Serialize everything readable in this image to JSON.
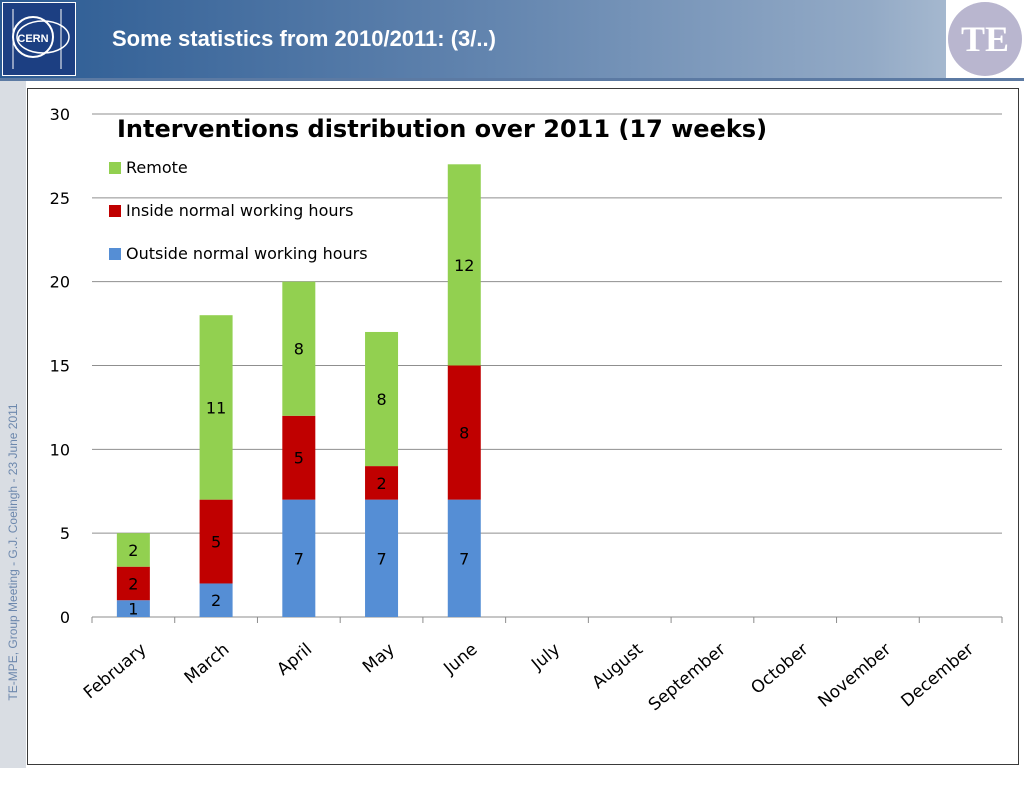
{
  "slide": {
    "title": "Some statistics from 2010/2011: (3/..)",
    "side_text": "TE-MPE, Group Meeting - G.J. Coelingh -  23 June 2011",
    "cern_logo_text": "CERN",
    "te_logo_text": "TE"
  },
  "colors": {
    "remote": "#92d050",
    "inside": "#c00000",
    "outside": "#558ed5",
    "header_dark": "#2b5b93"
  },
  "chart_data": {
    "type": "bar",
    "stacked": true,
    "title": "Interventions distribution over 2011 (17 weeks)",
    "xlabel": "",
    "ylabel": "",
    "ylim": [
      0,
      30
    ],
    "yticks": [
      0,
      5,
      10,
      15,
      20,
      25,
      30
    ],
    "grid": true,
    "legend_position": "top-left",
    "categories": [
      "February",
      "March",
      "April",
      "May",
      "June",
      "July",
      "August",
      "September",
      "October",
      "November",
      "December"
    ],
    "series": [
      {
        "name": "Outside normal working hours",
        "color": "#558ed5",
        "values": [
          1,
          2,
          7,
          7,
          7,
          null,
          null,
          null,
          null,
          null,
          null
        ]
      },
      {
        "name": "Inside normal working hours",
        "color": "#c00000",
        "values": [
          2,
          5,
          5,
          2,
          8,
          null,
          null,
          null,
          null,
          null,
          null
        ]
      },
      {
        "name": "Remote",
        "color": "#92d050",
        "values": [
          2,
          11,
          8,
          8,
          12,
          null,
          null,
          null,
          null,
          null,
          null
        ]
      }
    ],
    "legend_order": [
      "Remote",
      "Inside normal working hours",
      "Outside normal working hours"
    ]
  }
}
